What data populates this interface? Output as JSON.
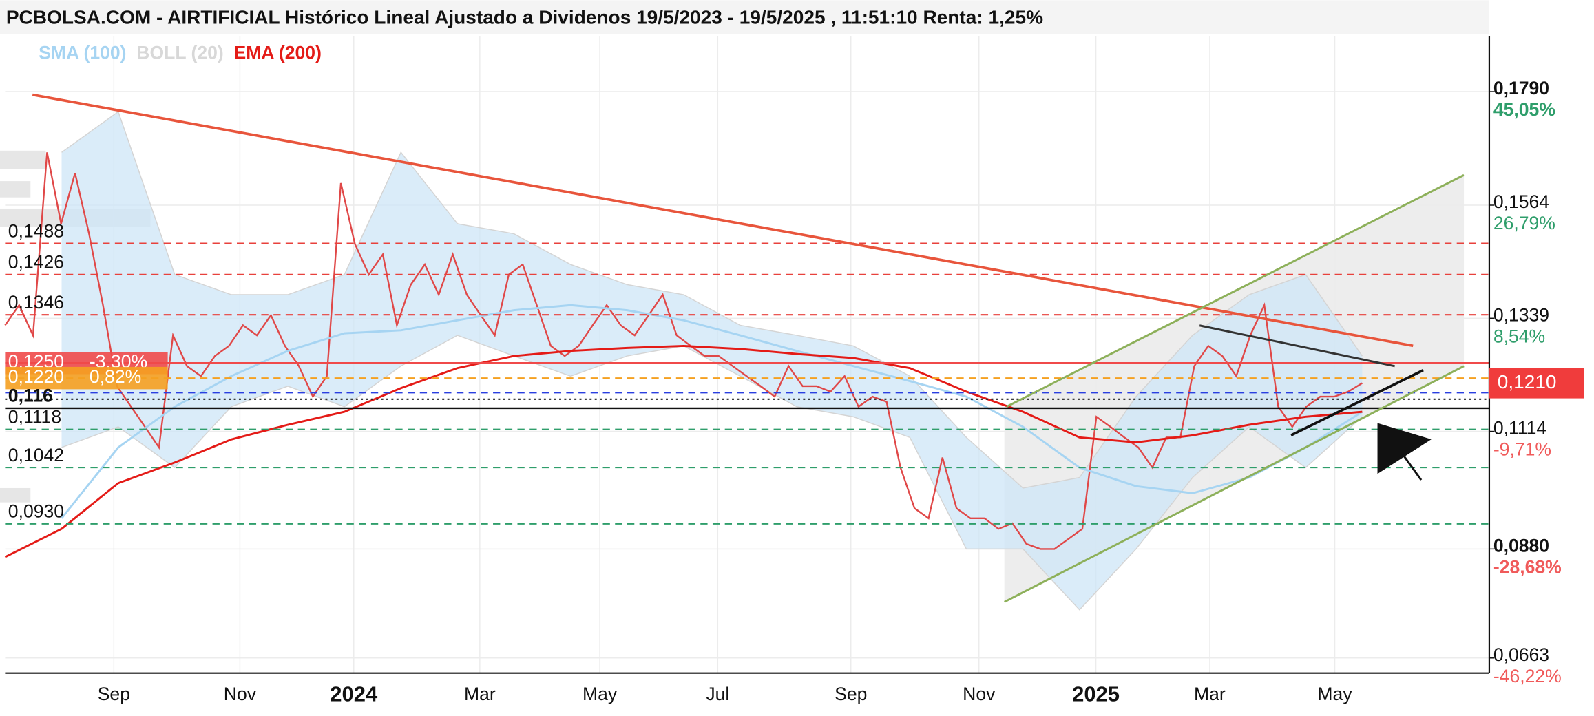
{
  "chart_data": {
    "type": "line",
    "title": "PCBOLSA.COM - AIRTIFICIAL Histórico Lineal Ajustado a Dividenos 19/5/2023 - 19/5/2025 , 11:51:10 Renta: 1,25%",
    "ylim": [
      0.0633,
      0.1901
    ],
    "yticks": [
      {
        "value": 0.179,
        "label": "0,1790",
        "change": "45,05%",
        "bold": true
      },
      {
        "value": 0.1564,
        "label": "0,1564",
        "change": "26,79%"
      },
      {
        "value": 0.1339,
        "label": "0,1339",
        "change": "8,54%"
      },
      {
        "value": 0.1114,
        "label": "0,1114",
        "change": "-9,71%"
      },
      {
        "value": 0.088,
        "label": "0,0880",
        "change": "-28,68%",
        "bold": true
      },
      {
        "value": 0.0663,
        "label": "0,0663",
        "change": "-46,22%"
      }
    ],
    "grid": true,
    "x_labels": [
      "Sep",
      "Nov",
      "2024",
      "Mar",
      "May",
      "Jul",
      "Sep",
      "Nov",
      "2025",
      "Mar",
      "May"
    ],
    "current": {
      "value": 0.121,
      "label": "0,1210",
      "color": "#f03c3c"
    },
    "series": [
      {
        "color": "#e04848",
        "values": [
          0.1325,
          0.1365,
          0.1305,
          0.1669,
          0.1527,
          0.1628,
          0.1507,
          0.1365,
          0.1204,
          0.1163,
          0.1123,
          0.1082,
          0.1305,
          0.1244,
          0.1224,
          0.1264,
          0.1284,
          0.1325,
          0.1305,
          0.1345,
          0.1284,
          0.1244,
          0.1183,
          0.1224,
          0.1608,
          0.1487,
          0.1426,
          0.1466,
          0.1325,
          0.1406,
          0.1446,
          0.1386,
          0.1466,
          0.1386,
          0.1345,
          0.1305,
          0.1426,
          0.1446,
          0.1365,
          0.1284,
          0.1264,
          0.1284,
          0.1325,
          0.1365,
          0.1325,
          0.1305,
          0.1345,
          0.1386,
          0.1305,
          0.1284,
          0.1264,
          0.1264,
          0.1244,
          0.1224,
          0.1204,
          0.1183,
          0.1244,
          0.1204,
          0.1204,
          0.1193,
          0.1224,
          0.1163,
          0.1183,
          0.1173,
          0.1042,
          0.0961,
          0.0941,
          0.1062,
          0.0961,
          0.0941,
          0.0941,
          0.092,
          0.0931,
          0.089,
          0.088,
          0.088,
          0.09,
          0.092,
          0.1143,
          0.1123,
          0.1102,
          0.1082,
          0.1042,
          0.1102,
          0.1102,
          0.1244,
          0.1284,
          0.1264,
          0.1224,
          0.1305,
          0.1365,
          0.1163,
          0.1123,
          0.1163,
          0.1183,
          0.1183,
          0.1193,
          0.121
        ]
      },
      {
        "name": "SMA (100)",
        "color": "#a6d4f2",
        "values": [
          null,
          0.0941,
          0.1082,
          0.1163,
          0.1224,
          0.1274,
          0.1309,
          0.1315,
          0.1335,
          0.1355,
          0.1365,
          0.1355,
          0.1335,
          0.1305,
          0.1274,
          0.1244,
          0.1214,
          0.1183,
          0.1123,
          0.1042,
          0.1005,
          0.0991,
          0.1022,
          0.1082,
          0.1153
        ]
      },
      {
        "name": "BOLL (20)",
        "color": "#d4d4d4",
        "band_color": "#cde6f7",
        "upper": [
          null,
          0.1669,
          0.175,
          0.1426,
          0.1386,
          0.1386,
          0.1426,
          0.1669,
          0.1527,
          0.1507,
          0.1446,
          0.1406,
          0.1386,
          0.1325,
          0.1305,
          0.1284,
          0.1224,
          0.1102,
          0.1001,
          0.1022,
          0.1183,
          0.1305,
          0.1386,
          0.1426,
          0.1264
        ],
        "lower": [
          null,
          0.1082,
          0.1123,
          0.1042,
          0.1163,
          0.1204,
          0.1163,
          0.1244,
          0.1305,
          0.1264,
          0.1224,
          0.1264,
          0.1284,
          0.1224,
          0.1163,
          0.1143,
          0.1102,
          0.088,
          0.088,
          0.0759,
          0.088,
          0.1022,
          0.1123,
          0.1042,
          0.1143
        ]
      },
      {
        "name": "EMA (200)",
        "color": "#e41b17",
        "values": [
          0.0864,
          0.092,
          0.1011,
          0.1052,
          0.1098,
          0.1127,
          0.1153,
          0.12,
          0.124,
          0.1264,
          0.1274,
          0.128,
          0.1284,
          0.1278,
          0.1268,
          0.126,
          0.124,
          0.1193,
          0.1153,
          0.1102,
          0.1092,
          0.1106,
          0.1127,
          0.1143,
          0.1153
        ]
      }
    ],
    "levels": [
      {
        "value": 0.1488,
        "label": "0,1488",
        "color": "#e8413c",
        "style": "dashed"
      },
      {
        "value": 0.1426,
        "label": "0,1426",
        "color": "#e8413c",
        "style": "dashed"
      },
      {
        "value": 0.1346,
        "label": "0,1346",
        "color": "#e8413c",
        "style": "dashed"
      },
      {
        "value": 0.125,
        "label": "0,1250",
        "change": "-3,30%",
        "color": "#f04a4a",
        "style": "solid",
        "box": true
      },
      {
        "value": 0.122,
        "label": "0,1220",
        "change": "0,82%",
        "color": "#f5a020",
        "style": "dashed",
        "box": true
      },
      {
        "value": 0.1191,
        "color": "#2a3fe0",
        "style": "dashed"
      },
      {
        "value": 0.1178,
        "color": "#222222",
        "style": "dotted"
      },
      {
        "value": 0.116,
        "label": "0,116",
        "color": "#111111",
        "style": "solid"
      },
      {
        "value": 0.1118,
        "label": "0,1118",
        "color": "#2f9e6b",
        "style": "dashed"
      },
      {
        "value": 0.1042,
        "label": "0,1042",
        "color": "#2f9e6b",
        "style": "dashed"
      },
      {
        "value": 0.093,
        "label": "0,0930",
        "color": "#2f9e6b",
        "style": "dashed"
      }
    ]
  }
}
